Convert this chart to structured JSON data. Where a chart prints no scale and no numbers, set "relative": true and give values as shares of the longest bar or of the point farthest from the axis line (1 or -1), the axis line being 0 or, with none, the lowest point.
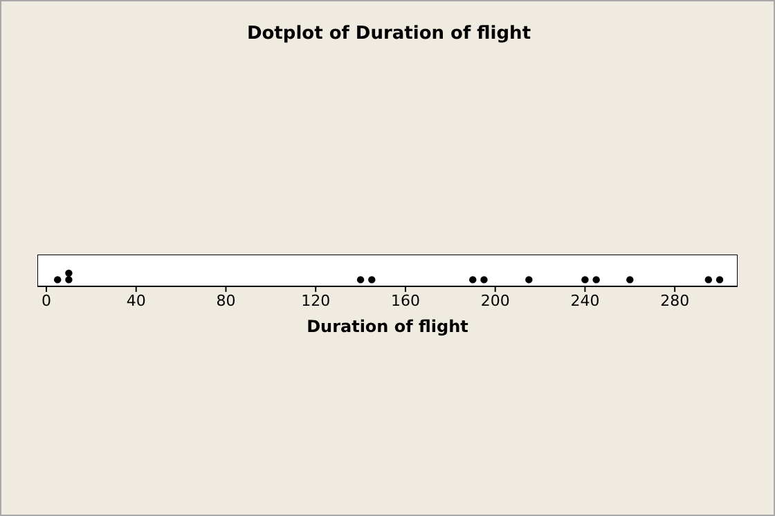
{
  "chart_data": {
    "type": "scatter",
    "title": "Dotplot of Duration of flight",
    "xlabel": "Duration of flight",
    "x": [
      5,
      10,
      10,
      140,
      145,
      190,
      195,
      215,
      240,
      245,
      260,
      295,
      300
    ],
    "values": [
      0.5,
      0.5,
      1,
      0.5,
      0.5,
      0.5,
      0.5,
      0.5,
      0.5,
      0.5,
      0.5,
      0.5,
      0.5
    ],
    "relative": true,
    "color": "#000000",
    "marker": "circle",
    "tick_labels": "x",
    "xlim": [
      -4,
      308
    ],
    "xticks": [
      0,
      40,
      80,
      120,
      160,
      200,
      240,
      280
    ]
  }
}
